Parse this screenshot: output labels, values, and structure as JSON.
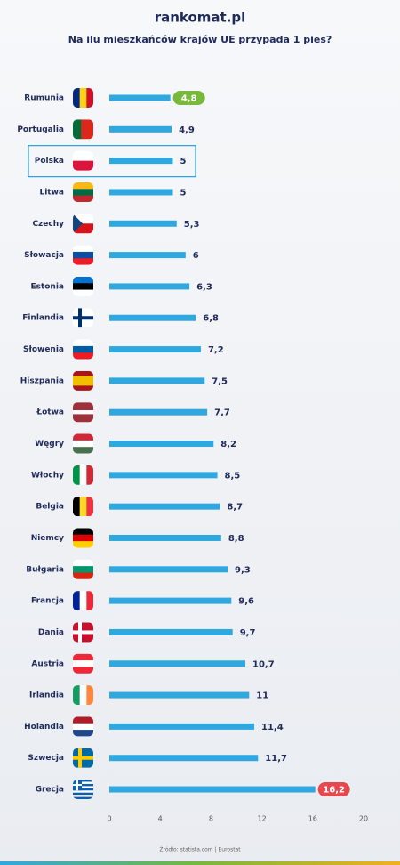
{
  "brand": "rankomat.pl",
  "source": "Źródło: statista.com | Eurostat",
  "chart_data": {
    "type": "bar",
    "orientation": "horizontal",
    "title": "Na ilu mieszkańców krajów UE przypada 1 pies?",
    "categories": [
      "Rumunia",
      "Portugalia",
      "Polska",
      "Litwa",
      "Czechy",
      "Słowacja",
      "Estonia",
      "Finlandia",
      "Słowenia",
      "Hiszpania",
      "Łotwa",
      "Węgry",
      "Włochy",
      "Belgia",
      "Niemcy",
      "Bułgaria",
      "Francja",
      "Dania",
      "Austria",
      "Irlandia",
      "Holandia",
      "Szwecja",
      "Grecja"
    ],
    "values": [
      4.8,
      4.9,
      5,
      5,
      5.3,
      6,
      6.3,
      6.8,
      7.2,
      7.5,
      7.7,
      8.2,
      8.5,
      8.7,
      8.8,
      9.3,
      9.6,
      9.7,
      10.7,
      11,
      11.4,
      11.7,
      16.2
    ],
    "value_labels": [
      "4,8",
      "4,9",
      "5",
      "5",
      "5,3",
      "6",
      "6,3",
      "6,8",
      "7,2",
      "7,5",
      "7,7",
      "8,2",
      "8,5",
      "8,7",
      "8,8",
      "9,3",
      "9,6",
      "9,7",
      "10,7",
      "11",
      "11,4",
      "11,7",
      "16,2"
    ],
    "badge_colors": [
      "#78b83a",
      null,
      null,
      null,
      null,
      null,
      null,
      null,
      null,
      null,
      null,
      null,
      null,
      null,
      null,
      null,
      null,
      null,
      null,
      null,
      null,
      null,
      "#e5484d"
    ],
    "outlined": [
      false,
      false,
      true,
      false,
      false,
      false,
      false,
      false,
      false,
      false,
      false,
      false,
      false,
      false,
      false,
      false,
      false,
      false,
      false,
      false,
      false,
      false,
      false
    ],
    "outline_color": "#2a9fd8",
    "color": "#2fa8df",
    "xlim": [
      0,
      20
    ],
    "xticks": [
      0,
      4,
      8,
      12,
      16,
      20
    ],
    "grid": false
  }
}
